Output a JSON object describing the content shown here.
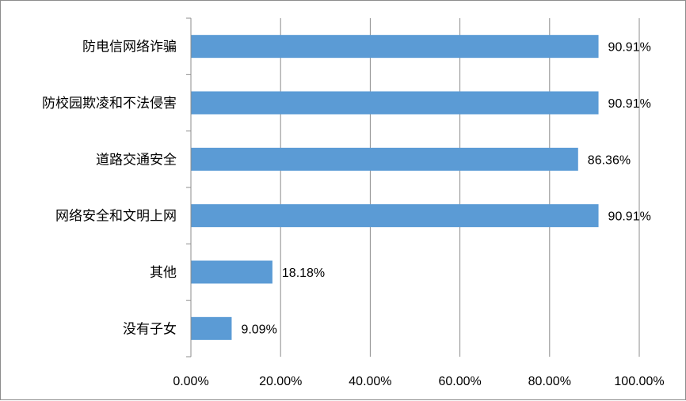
{
  "chart_data": {
    "type": "bar",
    "orientation": "horizontal",
    "categories": [
      "防电信网络诈骗",
      "防校园欺凌和不法侵害",
      "道路交通安全",
      "网络安全和文明上网",
      "其他",
      "没有子女"
    ],
    "values": [
      90.91,
      90.91,
      86.36,
      90.91,
      18.18,
      9.09
    ],
    "value_labels": [
      "90.91%",
      "90.91%",
      "86.36%",
      "90.91%",
      "18.18%",
      "9.09%"
    ],
    "xlim": [
      0,
      100
    ],
    "x_ticks": [
      0,
      20,
      40,
      60,
      80,
      100
    ],
    "x_tick_labels": [
      "0.00%",
      "20.00%",
      "40.00%",
      "60.00%",
      "80.00%",
      "100.00%"
    ],
    "title": "",
    "xlabel": "",
    "ylabel": "",
    "grid": "vertical",
    "legend": "none",
    "bar_color": "#5b9bd5",
    "grid_color": "#8c8c8c"
  }
}
